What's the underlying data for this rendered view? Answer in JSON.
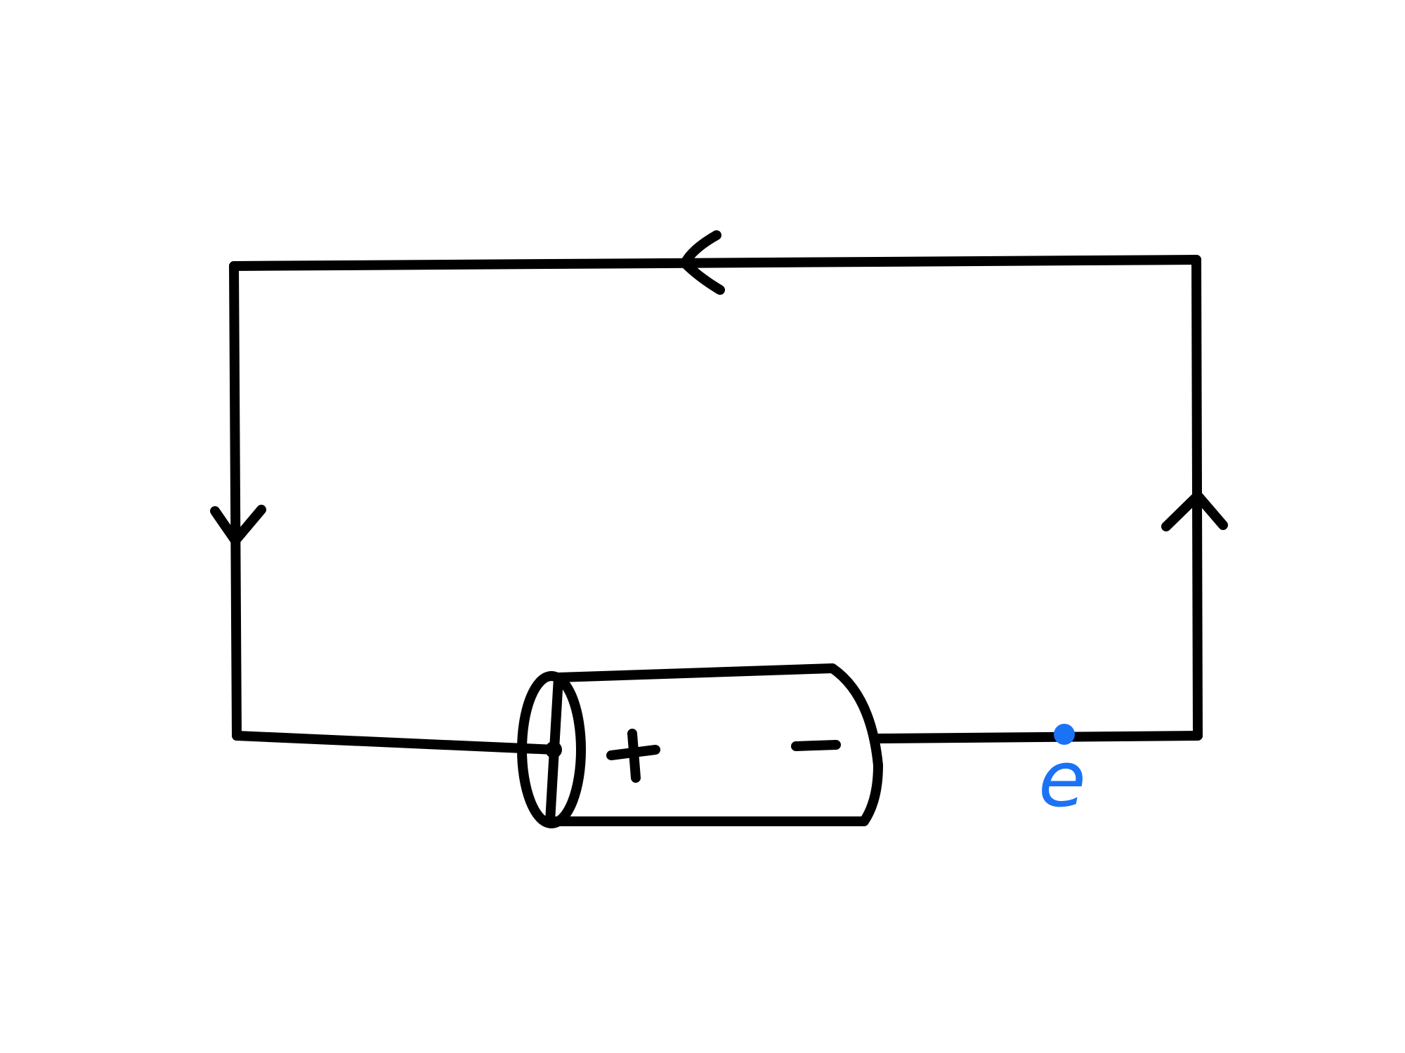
{
  "battery": {
    "positive_label": "+",
    "negative_label": "−"
  },
  "electron": {
    "label": "e",
    "color": "#1a73f5"
  },
  "current_arrows": [
    {
      "name": "top",
      "direction": "left"
    },
    {
      "name": "left",
      "direction": "down"
    },
    {
      "name": "right",
      "direction": "up"
    }
  ]
}
